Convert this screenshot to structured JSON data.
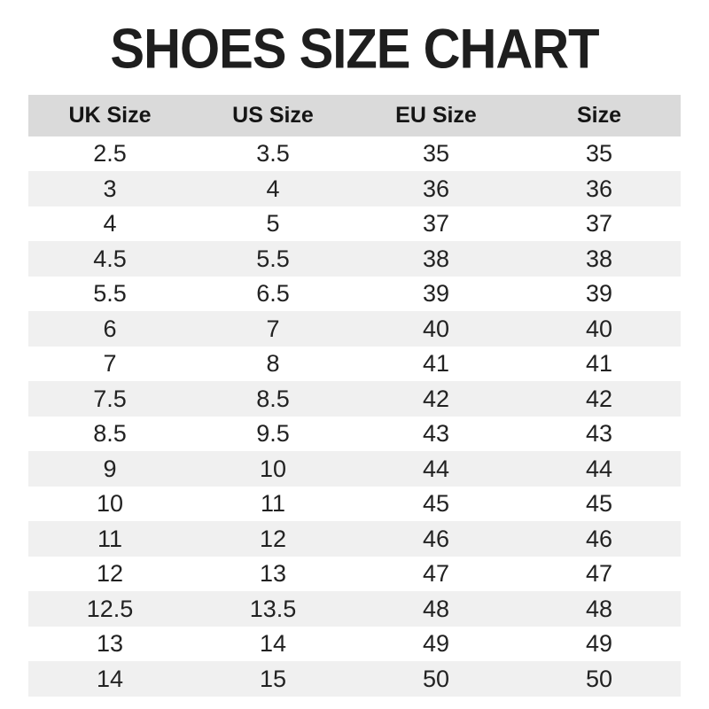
{
  "title": "SHOES SIZE CHART",
  "chart_data": {
    "type": "table",
    "title": "SHOES SIZE CHART",
    "columns": [
      "UK Size",
      "US Size",
      "EU Size",
      "Size"
    ],
    "rows": [
      [
        "2.5",
        "3.5",
        "35",
        "35"
      ],
      [
        "3",
        "4",
        "36",
        "36"
      ],
      [
        "4",
        "5",
        "37",
        "37"
      ],
      [
        "4.5",
        "5.5",
        "38",
        "38"
      ],
      [
        "5.5",
        "6.5",
        "39",
        "39"
      ],
      [
        "6",
        "7",
        "40",
        "40"
      ],
      [
        "7",
        "8",
        "41",
        "41"
      ],
      [
        "7.5",
        "8.5",
        "42",
        "42"
      ],
      [
        "8.5",
        "9.5",
        "43",
        "43"
      ],
      [
        "9",
        "10",
        "44",
        "44"
      ],
      [
        "10",
        "11",
        "45",
        "45"
      ],
      [
        "11",
        "12",
        "46",
        "46"
      ],
      [
        "12",
        "13",
        "47",
        "47"
      ],
      [
        "12.5",
        "13.5",
        "48",
        "48"
      ],
      [
        "13",
        "14",
        "49",
        "49"
      ],
      [
        "14",
        "15",
        "50",
        "50"
      ]
    ],
    "layout": {
      "row_striping": "alternating starting white",
      "header_bg": "#dadada",
      "stripe_bg": "#f0f0f0",
      "row_bg": "#ffffff",
      "text_color": "#222222",
      "title_color": "#1e1e1e"
    }
  }
}
